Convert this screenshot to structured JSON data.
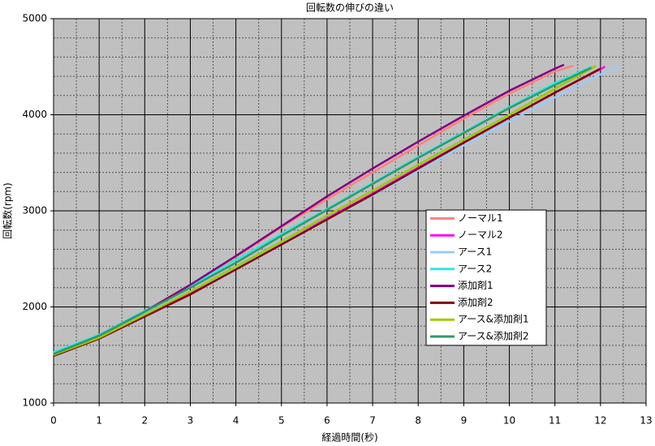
{
  "chart_data": {
    "type": "line",
    "title": "回転数の伸びの違い",
    "x_label": "経過時間(秒)",
    "y_label": "回転数(rpm)",
    "xlim": [
      0,
      13
    ],
    "ylim": [
      1000,
      5000
    ],
    "xticks": [
      0,
      1,
      2,
      3,
      4,
      5,
      6,
      7,
      8,
      9,
      10,
      11,
      12,
      13
    ],
    "yticks": [
      1000,
      2000,
      3000,
      4000,
      5000
    ],
    "xminorticks": [
      0.5,
      1.5,
      2.5,
      3.5,
      4.5,
      5.5,
      6.5,
      7.5,
      8.5,
      9.5,
      10.5,
      11.5,
      12.5
    ],
    "yminorticks": [
      1200,
      1400,
      1600,
      1800,
      2200,
      2400,
      2600,
      2800,
      3200,
      3400,
      3600,
      3800,
      4200,
      4400,
      4600,
      4800
    ],
    "grid": true,
    "background": "#c0c0c0",
    "legend": "right",
    "series": [
      {
        "name": "ノーマル1",
        "color": "#ff8080",
        "x": [
          0,
          1,
          2,
          3,
          4,
          5,
          6,
          7,
          8,
          9,
          10,
          11,
          11.4
        ],
        "values": [
          1520,
          1700,
          1960,
          2230,
          2520,
          2830,
          3120,
          3400,
          3680,
          3960,
          4220,
          4450,
          4510
        ]
      },
      {
        "name": "ノーマル2",
        "color": "#ff00ff",
        "x": [
          0,
          1,
          2,
          3,
          4,
          5,
          6,
          7,
          8,
          9,
          10,
          11,
          12.1
        ],
        "values": [
          1500,
          1680,
          1920,
          2140,
          2400,
          2660,
          2920,
          3180,
          3450,
          3710,
          3970,
          4230,
          4500
        ]
      },
      {
        "name": "アース1",
        "color": "#99ccff",
        "x": [
          0,
          1,
          2,
          3,
          4,
          5,
          6,
          7,
          8,
          9,
          10,
          11,
          12,
          12.4
        ],
        "values": [
          1510,
          1690,
          1930,
          2160,
          2410,
          2660,
          2910,
          3160,
          3420,
          3680,
          3930,
          4180,
          4420,
          4500
        ]
      },
      {
        "name": "アース2",
        "color": "#33e6e6",
        "x": [
          0,
          1,
          2,
          3,
          4,
          5,
          6,
          7,
          8,
          9,
          10,
          11,
          11.8
        ],
        "values": [
          1530,
          1710,
          1960,
          2220,
          2490,
          2760,
          3020,
          3290,
          3560,
          3820,
          4080,
          4330,
          4500
        ]
      },
      {
        "name": "添加剤1",
        "color": "#800080",
        "x": [
          0,
          1,
          2,
          3,
          4,
          5,
          6,
          7,
          8,
          9,
          10,
          11,
          11.2
        ],
        "values": [
          1510,
          1700,
          1950,
          2230,
          2530,
          2840,
          3150,
          3440,
          3720,
          3990,
          4250,
          4480,
          4520
        ]
      },
      {
        "name": "添加剤2",
        "color": "#800000",
        "x": [
          0,
          1,
          2,
          3,
          4,
          5,
          6,
          7,
          8,
          9,
          10,
          11,
          12
        ],
        "values": [
          1490,
          1670,
          1900,
          2130,
          2390,
          2650,
          2910,
          3170,
          3440,
          3710,
          3970,
          4230,
          4480
        ]
      },
      {
        "name": "アース&添加剤1",
        "color": "#99cc00",
        "x": [
          0,
          1,
          2,
          3,
          4,
          5,
          6,
          7,
          8,
          9,
          10,
          11,
          11.9
        ],
        "values": [
          1500,
          1680,
          1920,
          2160,
          2420,
          2680,
          2950,
          3210,
          3480,
          3740,
          4000,
          4270,
          4510
        ]
      },
      {
        "name": "アース&添加剤2",
        "color": "#339966",
        "x": [
          0,
          1,
          2,
          3,
          4,
          5,
          6,
          7,
          8,
          9,
          10,
          11,
          11.8
        ],
        "values": [
          1510,
          1700,
          1950,
          2200,
          2460,
          2740,
          3010,
          3280,
          3550,
          3810,
          4070,
          4310,
          4490
        ]
      }
    ]
  }
}
